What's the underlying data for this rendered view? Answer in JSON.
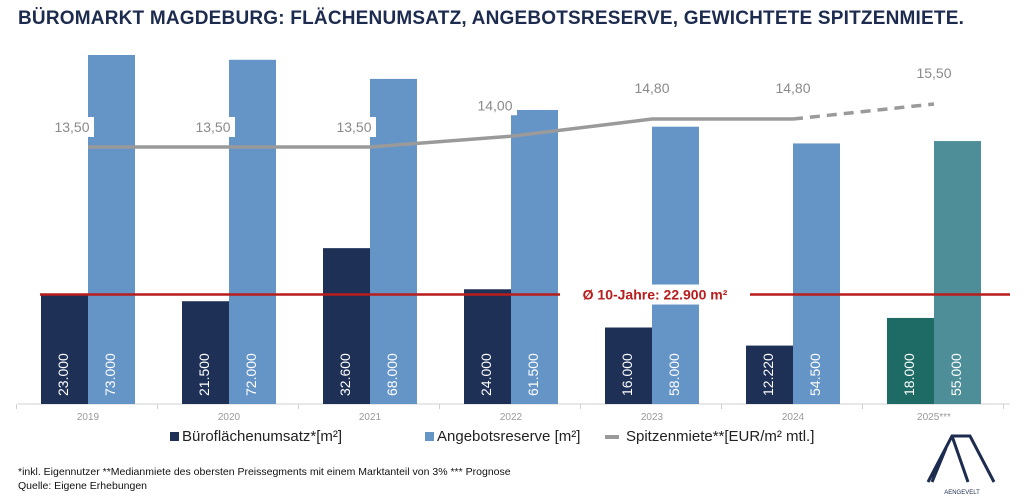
{
  "title": "BÜROMARKT MAGDEBURG: FLÄCHENUMSATZ, ANGEBOTSRESERVE, GEWICHTETE SPITZENMIETE.",
  "chart_data": {
    "type": "bar",
    "title": "BÜROMARKT MAGDEBURG: FLÄCHENUMSATZ, ANGEBOTSRESERVE, GEWICHTETE SPITZENMIETE.",
    "categories": [
      "2019",
      "2020",
      "2021",
      "2022",
      "2023",
      "2024",
      "2025***"
    ],
    "series": [
      {
        "name": "Büroflächenumsatz*[m²]",
        "type": "bar",
        "color": "#1f3057",
        "forecast_color": "#1e6b66",
        "values": [
          23000,
          21500,
          32600,
          24000,
          16000,
          12220,
          18000
        ],
        "labels": [
          "23.000",
          "21.500",
          "32.600",
          "24.000",
          "16.000",
          "12.220",
          "18.000"
        ]
      },
      {
        "name": "Angebotsreserve [m²]",
        "type": "bar",
        "color": "#6594c6",
        "forecast_color": "#4e8e98",
        "values": [
          73000,
          72000,
          68000,
          61500,
          58000,
          54500,
          55000
        ],
        "labels": [
          "73.000",
          "72.000",
          "68.000",
          "61.500",
          "58.000",
          "54.500",
          "55.000"
        ]
      },
      {
        "name": "Spitzenmiete**[EUR/m² mtl.]",
        "type": "line",
        "color": "#9a9a9a",
        "values": [
          13.5,
          13.5,
          13.5,
          14.0,
          14.8,
          14.8,
          15.5
        ],
        "labels": [
          "13,50",
          "13,50",
          "13,50",
          "14,00",
          "14,80",
          "14,80",
          "15,50"
        ],
        "forecast_dashed_last_segment": true
      }
    ],
    "reference_line": {
      "label": "Ø 10-Jahre: 22.900 m²",
      "value": 22900,
      "color": "#b81c1c"
    },
    "grid": false,
    "legend": "bottom"
  },
  "footnote": "*inkl. Eigennutzer **Medianmiete des obersten Preissegments mit einem Marktanteil von 3% *** Prognose",
  "source": "Quelle: Eigene Erhebungen",
  "logo_text": "AENGEVELT"
}
